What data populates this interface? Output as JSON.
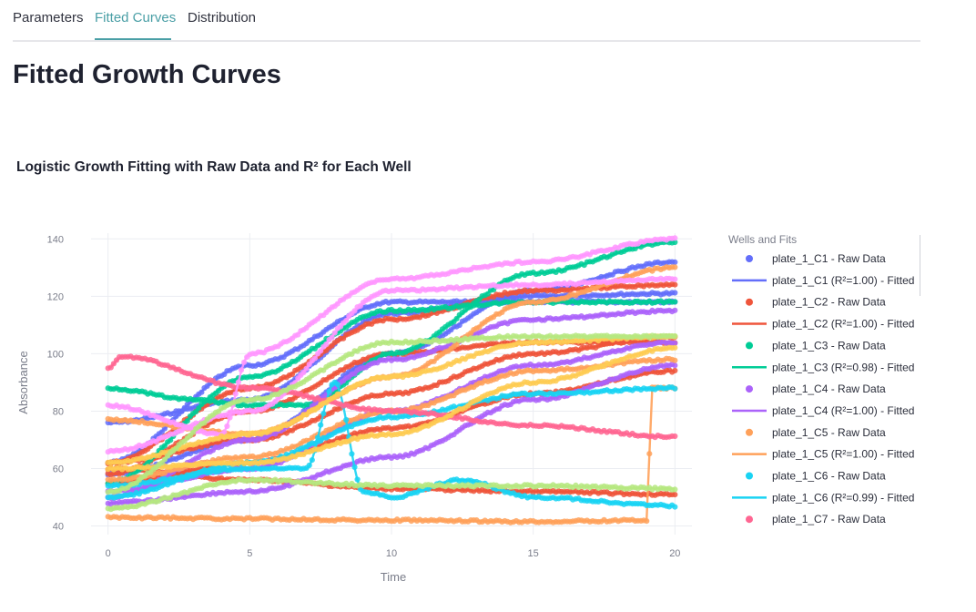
{
  "tabs": [
    {
      "label": "Parameters",
      "active": false
    },
    {
      "label": "Fitted Curves",
      "active": true
    },
    {
      "label": "Distribution",
      "active": false
    }
  ],
  "page_title": "Fitted Growth Curves",
  "chart_data": {
    "type": "scatter",
    "title": "Logistic Growth Fitting with Raw Data and R² for Each Well",
    "xlabel": "Time",
    "ylabel": "Absorbance",
    "xlim": [
      -0.6,
      20.6
    ],
    "ylim": [
      37,
      142
    ],
    "x_ticks": [
      0,
      5,
      10,
      15,
      20
    ],
    "y_ticks": [
      40,
      60,
      80,
      100,
      120,
      140
    ],
    "grid": true,
    "legend": {
      "title": "Wells and Fits",
      "placement": "right",
      "entries": [
        {
          "label": "plate_1_C1 - Raw Data",
          "kind": "marker",
          "color": "#636efa"
        },
        {
          "label": "plate_1_C1 (R²=1.00) - Fitted",
          "kind": "line",
          "color": "#636efa"
        },
        {
          "label": "plate_1_C2 - Raw Data",
          "kind": "marker",
          "color": "#ef553b"
        },
        {
          "label": "plate_1_C2 (R²=1.00) - Fitted",
          "kind": "line",
          "color": "#ef553b"
        },
        {
          "label": "plate_1_C3 - Raw Data",
          "kind": "marker",
          "color": "#00cc96"
        },
        {
          "label": "plate_1_C3 (R²=0.98) - Fitted",
          "kind": "line",
          "color": "#00cc96"
        },
        {
          "label": "plate_1_C4 - Raw Data",
          "kind": "marker",
          "color": "#ab63fa"
        },
        {
          "label": "plate_1_C4 (R²=1.00) - Fitted",
          "kind": "line",
          "color": "#ab63fa"
        },
        {
          "label": "plate_1_C5 - Raw Data",
          "kind": "marker",
          "color": "#ffa15a"
        },
        {
          "label": "plate_1_C5 (R²=1.00) - Fitted",
          "kind": "line",
          "color": "#ffa15a"
        },
        {
          "label": "plate_1_C6 - Raw Data",
          "kind": "marker",
          "color": "#19d3f3"
        },
        {
          "label": "plate_1_C6 (R²=0.99) - Fitted",
          "kind": "line",
          "color": "#19d3f3"
        },
        {
          "label": "plate_1_C7 - Raw Data",
          "kind": "marker",
          "color": "#ff6692"
        }
      ]
    },
    "series": [
      {
        "color": "#636efa",
        "x": [
          0,
          5,
          10,
          15,
          20
        ],
        "y": [
          76,
          84,
          114,
          120,
          121
        ]
      },
      {
        "color": "#636efa",
        "x": [
          0,
          5,
          10,
          15,
          20
        ],
        "y": [
          62,
          96,
          118,
          118,
          118
        ]
      },
      {
        "color": "#636efa",
        "x": [
          0,
          5,
          10,
          15,
          20
        ],
        "y": [
          58,
          70,
          100,
          122,
          132
        ]
      },
      {
        "color": "#ef553b",
        "x": [
          0,
          5,
          10,
          15,
          20
        ],
        "y": [
          58,
          80,
          100,
          104,
          104
        ]
      },
      {
        "color": "#ef553b",
        "x": [
          0,
          5,
          10,
          15,
          20
        ],
        "y": [
          62,
          70,
          86,
          100,
          106
        ]
      },
      {
        "color": "#ef553b",
        "x": [
          0,
          5,
          10,
          15,
          20
        ],
        "y": [
          55,
          62,
          74,
          86,
          94
        ]
      },
      {
        "color": "#ef553b",
        "x": [
          0,
          5,
          10,
          15,
          20
        ],
        "y": [
          60,
          56,
          53,
          52,
          51
        ]
      },
      {
        "color": "#ef553b",
        "x": [
          0,
          5,
          10,
          15,
          20
        ],
        "y": [
          62,
          88,
          112,
          122,
          124
        ]
      },
      {
        "color": "#00cc96",
        "x": [
          0,
          3,
          5,
          7,
          10,
          15,
          20
        ],
        "y": [
          88,
          84,
          82,
          82,
          100,
          128,
          139
        ]
      },
      {
        "color": "#00cc96",
        "x": [
          0,
          5,
          10,
          15,
          20
        ],
        "y": [
          55,
          92,
          115,
          118,
          118
        ]
      },
      {
        "color": "#ab63fa",
        "x": [
          0,
          5,
          10,
          15,
          20
        ],
        "y": [
          50,
          70,
          98,
          112,
          115
        ]
      },
      {
        "color": "#ab63fa",
        "x": [
          0,
          5,
          10,
          15,
          20
        ],
        "y": [
          48,
          52,
          64,
          84,
          96
        ]
      },
      {
        "color": "#ab63fa",
        "x": [
          0,
          5,
          10,
          15,
          20
        ],
        "y": [
          52,
          60,
          80,
          96,
          104
        ]
      },
      {
        "color": "#ffa15a",
        "x": [
          0,
          5,
          10,
          15,
          20
        ],
        "y": [
          77,
          72,
          92,
          118,
          130
        ]
      },
      {
        "color": "#ffa15a",
        "x": [
          0,
          5,
          10,
          15,
          19,
          19.2,
          20
        ],
        "y": [
          43,
          42.5,
          42,
          41.5,
          42,
          88,
          88
        ]
      },
      {
        "color": "#ffa15a",
        "x": [
          0,
          5,
          10,
          15,
          20
        ],
        "y": [
          56,
          64,
          80,
          94,
          98
        ]
      },
      {
        "color": "#19d3f3",
        "x": [
          0,
          5,
          7,
          8,
          9,
          10,
          12.5,
          15,
          20
        ],
        "y": [
          54,
          60,
          60,
          90,
          52,
          50,
          56,
          50,
          47
        ]
      },
      {
        "color": "#19d3f3",
        "x": [
          0,
          5,
          10,
          15,
          20
        ],
        "y": [
          50,
          62,
          78,
          86,
          88
        ]
      },
      {
        "color": "#ff6692",
        "x": [
          0,
          0.5,
          5,
          10,
          15,
          20
        ],
        "y": [
          95,
          99,
          88,
          80,
          75,
          71
        ]
      },
      {
        "color": "#ff97ff",
        "x": [
          0,
          4,
          5,
          10,
          15,
          20
        ],
        "y": [
          82,
          72,
          100,
          126,
          132,
          140
        ]
      },
      {
        "color": "#ff97ff",
        "x": [
          0,
          5,
          10,
          15,
          20
        ],
        "y": [
          66,
          80,
          122,
          124,
          126
        ]
      },
      {
        "color": "#fecb52",
        "x": [
          0,
          5,
          10,
          15,
          20
        ],
        "y": [
          60,
          62,
          72,
          90,
          102
        ]
      },
      {
        "color": "#fecb52",
        "x": [
          0,
          5,
          10,
          15,
          20
        ],
        "y": [
          62,
          72,
          92,
          104,
          106
        ]
      },
      {
        "color": "#b6e880",
        "x": [
          0,
          5,
          10,
          15,
          20
        ],
        "y": [
          46,
          56,
          54,
          54,
          53
        ]
      },
      {
        "color": "#b6e880",
        "x": [
          0,
          5,
          10,
          15,
          20
        ],
        "y": [
          52,
          84,
          104,
          106,
          106
        ]
      }
    ]
  }
}
